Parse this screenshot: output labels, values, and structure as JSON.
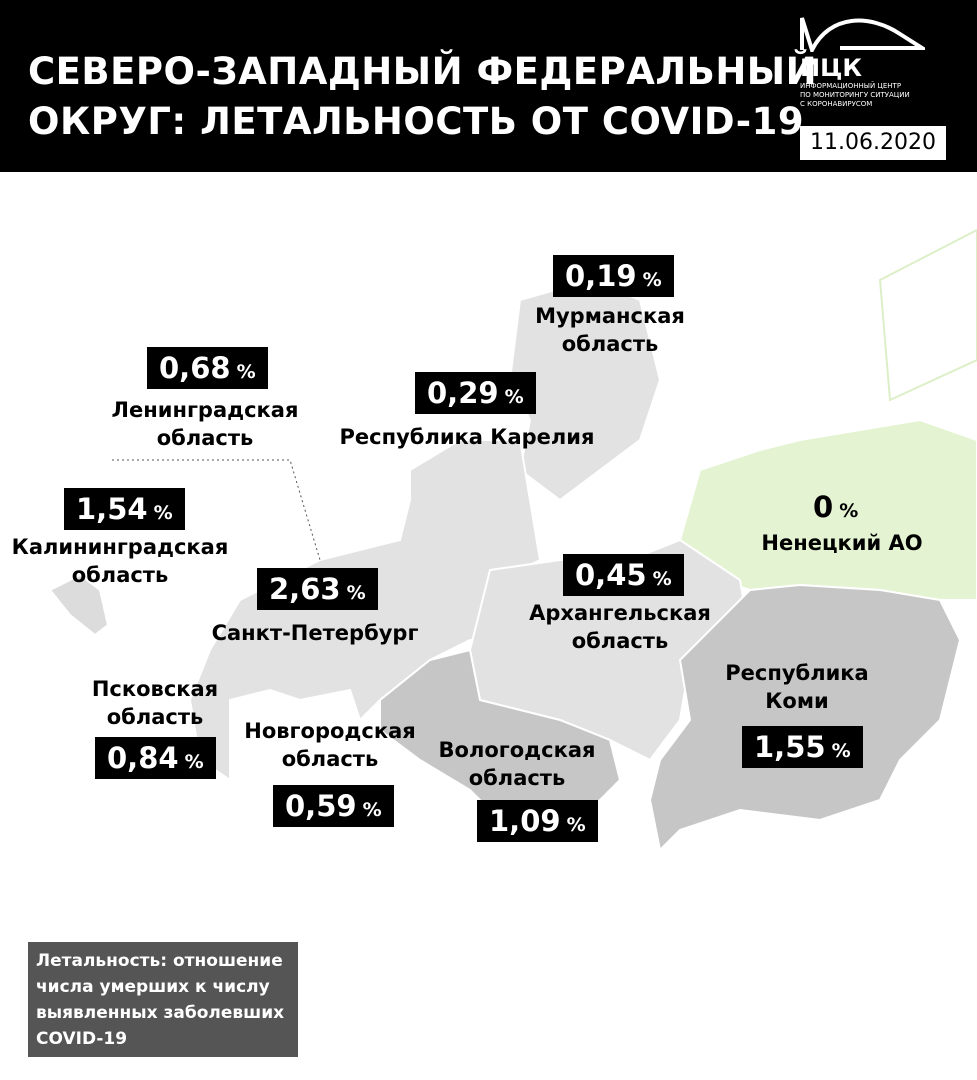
{
  "header": {
    "title": [
      "СЕВЕРО-ЗАПАДНЫЙ ФЕДЕРАЛЬНЫЙ",
      "ОКРУГ: ЛЕТАЛЬНОСТЬ ОТ COVID-19"
    ],
    "logo": {
      "name": "ИЦК",
      "subtitle": [
        "ИНФОРМАЦИОННЫЙ ЦЕНТР",
        "ПО МОНИТОРИНГУ СИТУАЦИИ",
        "С КОРОНАВИРУСОМ"
      ]
    },
    "date": "11.06.2020"
  },
  "unit": "%",
  "regions": [
    {
      "name": [
        "Мурманская",
        "область"
      ],
      "value": "0,19"
    },
    {
      "name": [
        "Ленинградская",
        "область"
      ],
      "value": "0,68"
    },
    {
      "name": [
        "Республика Карелия"
      ],
      "value": "0,29"
    },
    {
      "name": [
        "Калининградская",
        "область"
      ],
      "value": "1,54"
    },
    {
      "name": [
        "Санкт-Петербург"
      ],
      "value": "2,63"
    },
    {
      "name": [
        "Архангельская",
        "область"
      ],
      "value": "0,45"
    },
    {
      "name": [
        "Ненецкий АО"
      ],
      "value": "0"
    },
    {
      "name": [
        "Республика",
        "Коми"
      ],
      "value": "1,55"
    },
    {
      "name": [
        "Псковская",
        "область"
      ],
      "value": "0,84"
    },
    {
      "name": [
        "Новгородская",
        "область"
      ],
      "value": "0,59"
    },
    {
      "name": [
        "Вологодская",
        "область"
      ],
      "value": "1,09"
    }
  ],
  "footnote": [
    "Летальность: отношение",
    "числа умерших к числу",
    "выявленных заболевших",
    "COVID-19"
  ]
}
